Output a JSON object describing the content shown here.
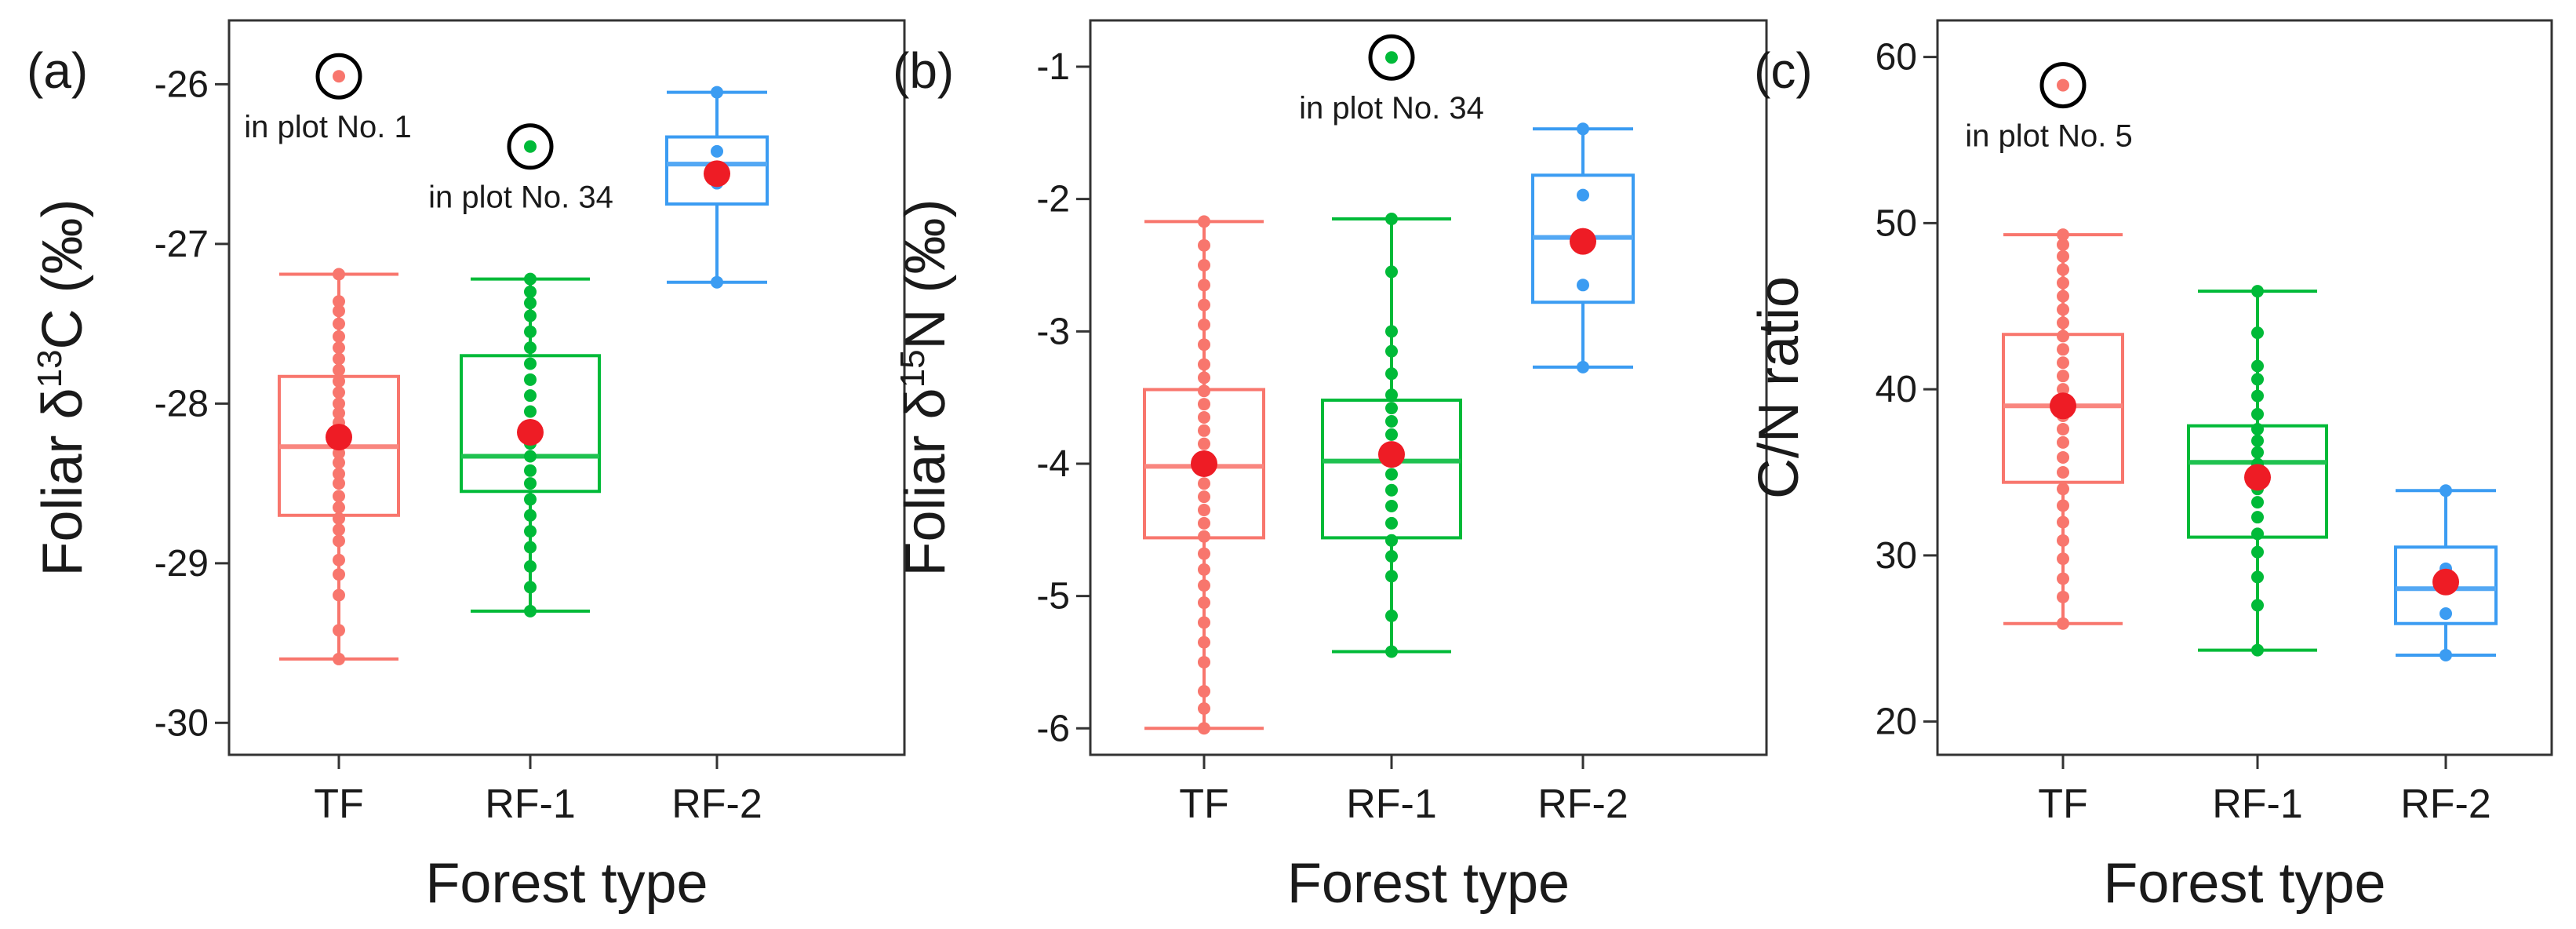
{
  "figure": {
    "colors": {
      "TF": "#F8766D",
      "RF-1": "#00BA38",
      "RF-2": "#3B9CF2",
      "mean": "#EE1C25",
      "circle": "#000000"
    }
  },
  "chart_data": [
    {
      "type": "box",
      "panel": "(a)",
      "title": "",
      "xlabel": "Forest type",
      "ylabel_parts": [
        "Foliar δ",
        "13",
        "C (‰)"
      ],
      "categories": [
        "TF",
        "RF-1",
        "RF-2"
      ],
      "ylim": [
        -30.2,
        -25.6
      ],
      "yticks": [
        -30,
        -29,
        -28,
        -27,
        -26
      ],
      "ytick_labels": [
        "-30",
        "-29",
        "-28",
        "-27",
        "-26"
      ],
      "boxes": [
        {
          "name": "TF",
          "whisker_low": -29.6,
          "q1": -28.7,
          "median": -28.27,
          "q3": -27.83,
          "whisker_high": -27.19,
          "mean": -28.21,
          "points": [
            -29.6,
            -29.42,
            -29.2,
            -29.07,
            -28.98,
            -28.86,
            -28.79,
            -28.72,
            -28.65,
            -28.58,
            -28.5,
            -28.44,
            -28.37,
            -28.31,
            -28.25,
            -28.18,
            -28.12,
            -28.06,
            -28.0,
            -27.93,
            -27.86,
            -27.79,
            -27.72,
            -27.65,
            -27.58,
            -27.5,
            -27.42,
            -27.36,
            -27.19
          ]
        },
        {
          "name": "RF-1",
          "whisker_low": -29.3,
          "q1": -28.55,
          "median": -28.33,
          "q3": -27.7,
          "whisker_high": -27.22,
          "mean": -28.18,
          "points": [
            -29.3,
            -29.15,
            -29.02,
            -28.9,
            -28.8,
            -28.7,
            -28.6,
            -28.5,
            -28.42,
            -28.33,
            -28.25,
            -28.15,
            -28.05,
            -27.95,
            -27.85,
            -27.75,
            -27.65,
            -27.55,
            -27.45,
            -27.37,
            -27.3,
            -27.22
          ]
        },
        {
          "name": "RF-2",
          "whisker_low": -27.24,
          "q1": -26.75,
          "median": -26.5,
          "q3": -26.33,
          "whisker_high": -26.05,
          "mean": -26.56,
          "points": [
            -27.24,
            -26.62,
            -26.42,
            -26.05
          ]
        }
      ],
      "outliers": [
        {
          "category": "TF",
          "value": -25.95,
          "label": "in plot No. 1"
        },
        {
          "category": "RF-1",
          "value": -26.39,
          "label": "in plot No. 34"
        }
      ]
    },
    {
      "type": "box",
      "panel": "(b)",
      "title": "",
      "xlabel": "Forest type",
      "ylabel_parts": [
        "Foliar δ",
        "15",
        "N (‰)"
      ],
      "categories": [
        "TF",
        "RF-1",
        "RF-2"
      ],
      "ylim": [
        -6.2,
        -0.65
      ],
      "yticks": [
        -6,
        -5,
        -4,
        -3,
        -2,
        -1
      ],
      "ytick_labels": [
        "-6",
        "-5",
        "-4",
        "-3",
        "-2",
        "-1"
      ],
      "boxes": [
        {
          "name": "TF",
          "whisker_low": -6.0,
          "q1": -4.56,
          "median": -4.02,
          "q3": -3.44,
          "whisker_high": -2.17,
          "mean": -4.0,
          "points": [
            -6.0,
            -5.85,
            -5.72,
            -5.5,
            -5.35,
            -5.2,
            -5.05,
            -4.92,
            -4.8,
            -4.68,
            -4.55,
            -4.45,
            -4.35,
            -4.25,
            -4.15,
            -4.05,
            -3.95,
            -3.85,
            -3.75,
            -3.65,
            -3.55,
            -3.45,
            -3.35,
            -3.25,
            -3.1,
            -2.95,
            -2.8,
            -2.65,
            -2.5,
            -2.35,
            -2.17
          ]
        },
        {
          "name": "RF-1",
          "whisker_low": -5.42,
          "q1": -4.56,
          "median": -3.98,
          "q3": -3.52,
          "whisker_high": -2.15,
          "mean": -3.93,
          "points": [
            -5.42,
            -5.15,
            -4.85,
            -4.7,
            -4.58,
            -4.45,
            -4.32,
            -4.2,
            -4.08,
            -3.98,
            -3.88,
            -3.78,
            -3.68,
            -3.58,
            -3.48,
            -3.32,
            -3.15,
            -3.0,
            -2.55,
            -2.15
          ]
        },
        {
          "name": "RF-2",
          "whisker_low": -3.27,
          "q1": -2.78,
          "median": -2.29,
          "q3": -1.82,
          "whisker_high": -1.47,
          "mean": -2.32,
          "points": [
            -3.27,
            -2.65,
            -1.97,
            -1.47
          ]
        }
      ],
      "outliers": [
        {
          "category": "RF-1",
          "value": -0.93,
          "label": "in plot No. 34"
        }
      ]
    },
    {
      "type": "box",
      "panel": "(c)",
      "title": "",
      "xlabel": "Forest type",
      "ylabel_parts": [
        "C/N ratio"
      ],
      "categories": [
        "TF",
        "RF-1",
        "RF-2"
      ],
      "ylim": [
        18,
        62.2
      ],
      "yticks": [
        20,
        30,
        40,
        50,
        60
      ],
      "ytick_labels": [
        "20",
        "30",
        "40",
        "50",
        "60"
      ],
      "boxes": [
        {
          "name": "TF",
          "whisker_low": 25.9,
          "q1": 34.4,
          "median": 39.0,
          "q3": 43.3,
          "whisker_high": 49.3,
          "mean": 39.0,
          "points": [
            25.9,
            27.5,
            28.6,
            29.8,
            30.9,
            32.0,
            33.0,
            34.0,
            35.0,
            35.9,
            36.8,
            37.6,
            38.4,
            39.2,
            40.0,
            40.8,
            41.6,
            42.4,
            43.2,
            44.0,
            44.8,
            45.6,
            46.4,
            47.2,
            48.0,
            48.7,
            49.3
          ]
        },
        {
          "name": "RF-1",
          "whisker_low": 24.3,
          "q1": 31.1,
          "median": 35.6,
          "q3": 37.8,
          "whisker_high": 45.9,
          "mean": 34.7,
          "points": [
            24.3,
            27.0,
            28.7,
            30.2,
            31.3,
            32.3,
            33.2,
            34.0,
            34.8,
            35.5,
            36.2,
            36.9,
            37.6,
            38.5,
            39.6,
            40.6,
            41.4,
            43.4,
            45.9
          ]
        },
        {
          "name": "RF-2",
          "whisker_low": 24.0,
          "q1": 25.9,
          "median": 28.0,
          "q3": 30.5,
          "whisker_high": 33.9,
          "mean": 28.4,
          "points": [
            24.0,
            26.5,
            29.2,
            33.9
          ]
        }
      ],
      "outliers": [
        {
          "category": "TF",
          "value": 58.3,
          "label": "in plot No. 5"
        }
      ]
    }
  ]
}
